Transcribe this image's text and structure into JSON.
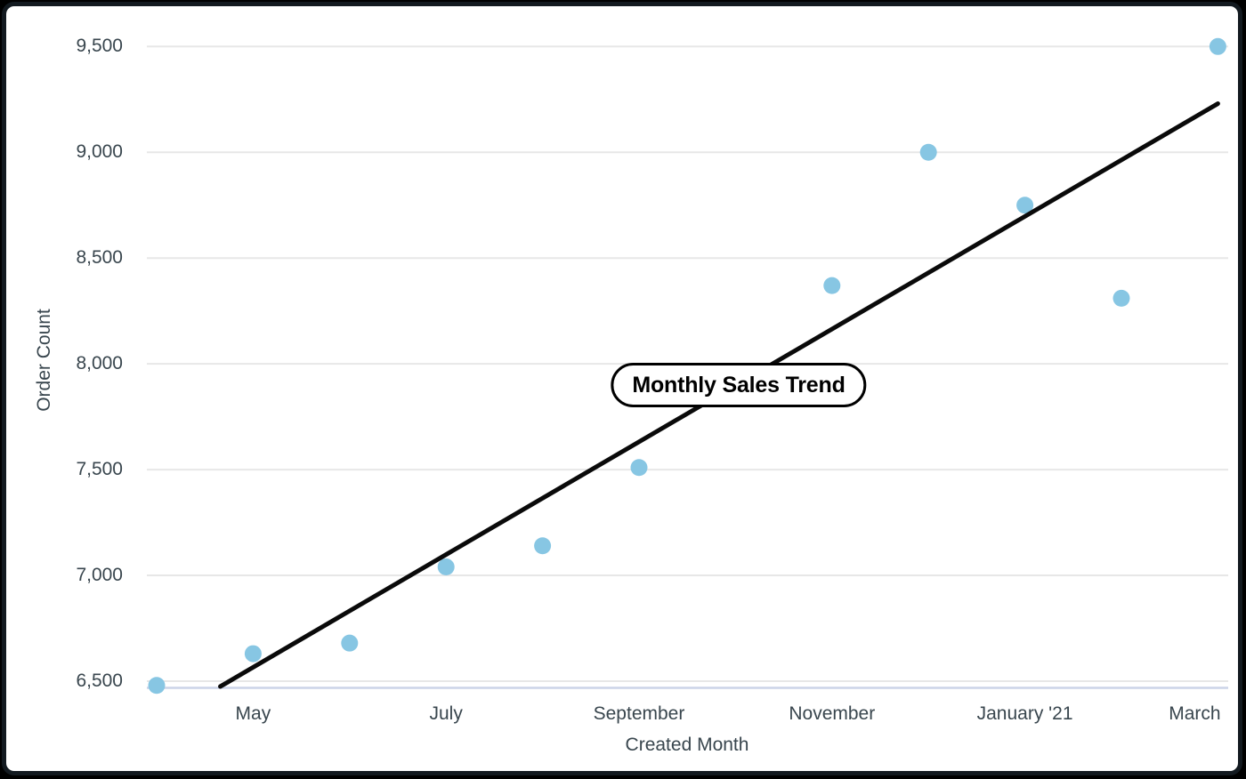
{
  "frame": {
    "page_background": "#000000",
    "card_background": "#ffffff",
    "card_border_color": "#131a20"
  },
  "chart_data": {
    "type": "scatter",
    "title": "Monthly Sales Trend",
    "xlabel": "Created Month",
    "ylabel": "Order Count",
    "ylim": [
      6500,
      9500
    ],
    "grid": "horizontal gridlines only, no legend",
    "legend": "none",
    "y_ticks": [
      {
        "label": "6,500",
        "value": 6500
      },
      {
        "label": "7,000",
        "value": 7000
      },
      {
        "label": "7,500",
        "value": 7500
      },
      {
        "label": "8,000",
        "value": 8000
      },
      {
        "label": "8,500",
        "value": 8500
      },
      {
        "label": "9,000",
        "value": 9000
      },
      {
        "label": "9,500",
        "value": 9500
      }
    ],
    "x_tick_labels": [
      {
        "label": "May",
        "month_index": 1
      },
      {
        "label": "July",
        "month_index": 3
      },
      {
        "label": "September",
        "month_index": 5
      },
      {
        "label": "November",
        "month_index": 7
      },
      {
        "label": "January '21",
        "month_index": 9
      },
      {
        "label": "March",
        "month_index": 11
      }
    ],
    "points": [
      {
        "month": "April '20",
        "month_index": 0,
        "value": 6480
      },
      {
        "month": "May",
        "month_index": 1,
        "value": 6630
      },
      {
        "month": "June",
        "month_index": 2,
        "value": 6680
      },
      {
        "month": "July",
        "month_index": 3,
        "value": 7040
      },
      {
        "month": "August",
        "month_index": 4,
        "value": 7140
      },
      {
        "month": "September",
        "month_index": 5,
        "value": 7510
      },
      {
        "month": "November",
        "month_index": 7,
        "value": 8370
      },
      {
        "month": "December",
        "month_index": 8,
        "value": 9000
      },
      {
        "month": "January '21",
        "month_index": 9,
        "value": 8750
      },
      {
        "month": "February",
        "month_index": 10,
        "value": 8310
      },
      {
        "month": "March",
        "month_index": 11,
        "value": 9500
      }
    ],
    "trendline": {
      "start": {
        "month_index": 0.66,
        "value": 6475
      },
      "end": {
        "month_index": 11,
        "value": 9230
      }
    },
    "colors": {
      "point": "#87C6E3",
      "trendline": "#0a0a0a",
      "gridline": "#e7e7e7",
      "axis_line": "#ccd4e8",
      "text": "#39464e"
    }
  }
}
